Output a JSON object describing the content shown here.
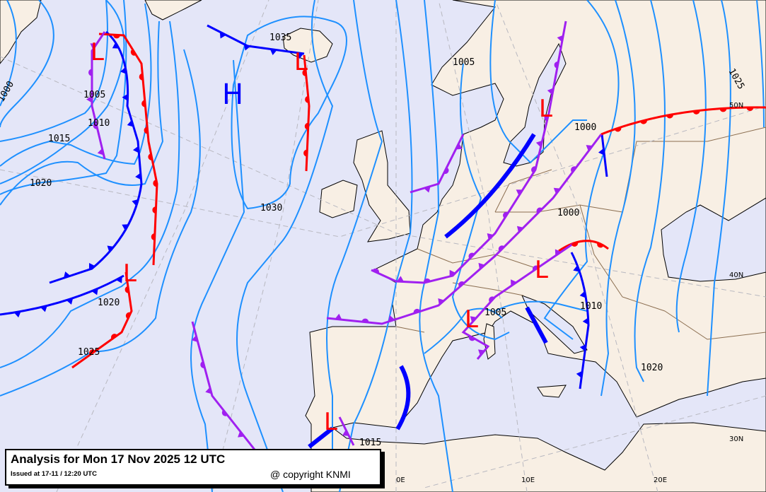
{
  "title_box": {
    "title": "Analysis for Mon 17 Nov 2025 12 UTC",
    "issued": "Issued at 17-11 / 12:20 UTC",
    "copyright": "@ copyright KNMI"
  },
  "colors": {
    "sea": "#e4e6f8",
    "land": "#f8efe4",
    "isobar": "#1e90ff",
    "cold_front": "#0000ff",
    "warm_front": "#ff0000",
    "occluded_front": "#a020f0",
    "high_center": "#0000ff",
    "low_center": "#ff0000"
  },
  "pressure_centers": [
    {
      "type": "L"
    },
    {
      "type": "L"
    },
    {
      "type": "H"
    },
    {
      "type": "L"
    },
    {
      "type": "L"
    },
    {
      "type": "L"
    },
    {
      "type": "L"
    },
    {
      "type": "L"
    }
  ],
  "isobar_labels": [
    "1000",
    "1005",
    "1010",
    "1015",
    "1020",
    "1025",
    "1020",
    "1030",
    "1035",
    "1005",
    "1000",
    "1000",
    "1005",
    "1010",
    "1015",
    "1020",
    "1025"
  ],
  "graticule_labels": [
    "50N",
    "40N",
    "30N",
    "0E",
    "10E",
    "20E"
  ],
  "front_types": [
    "cold",
    "warm",
    "occluded",
    "trough"
  ]
}
